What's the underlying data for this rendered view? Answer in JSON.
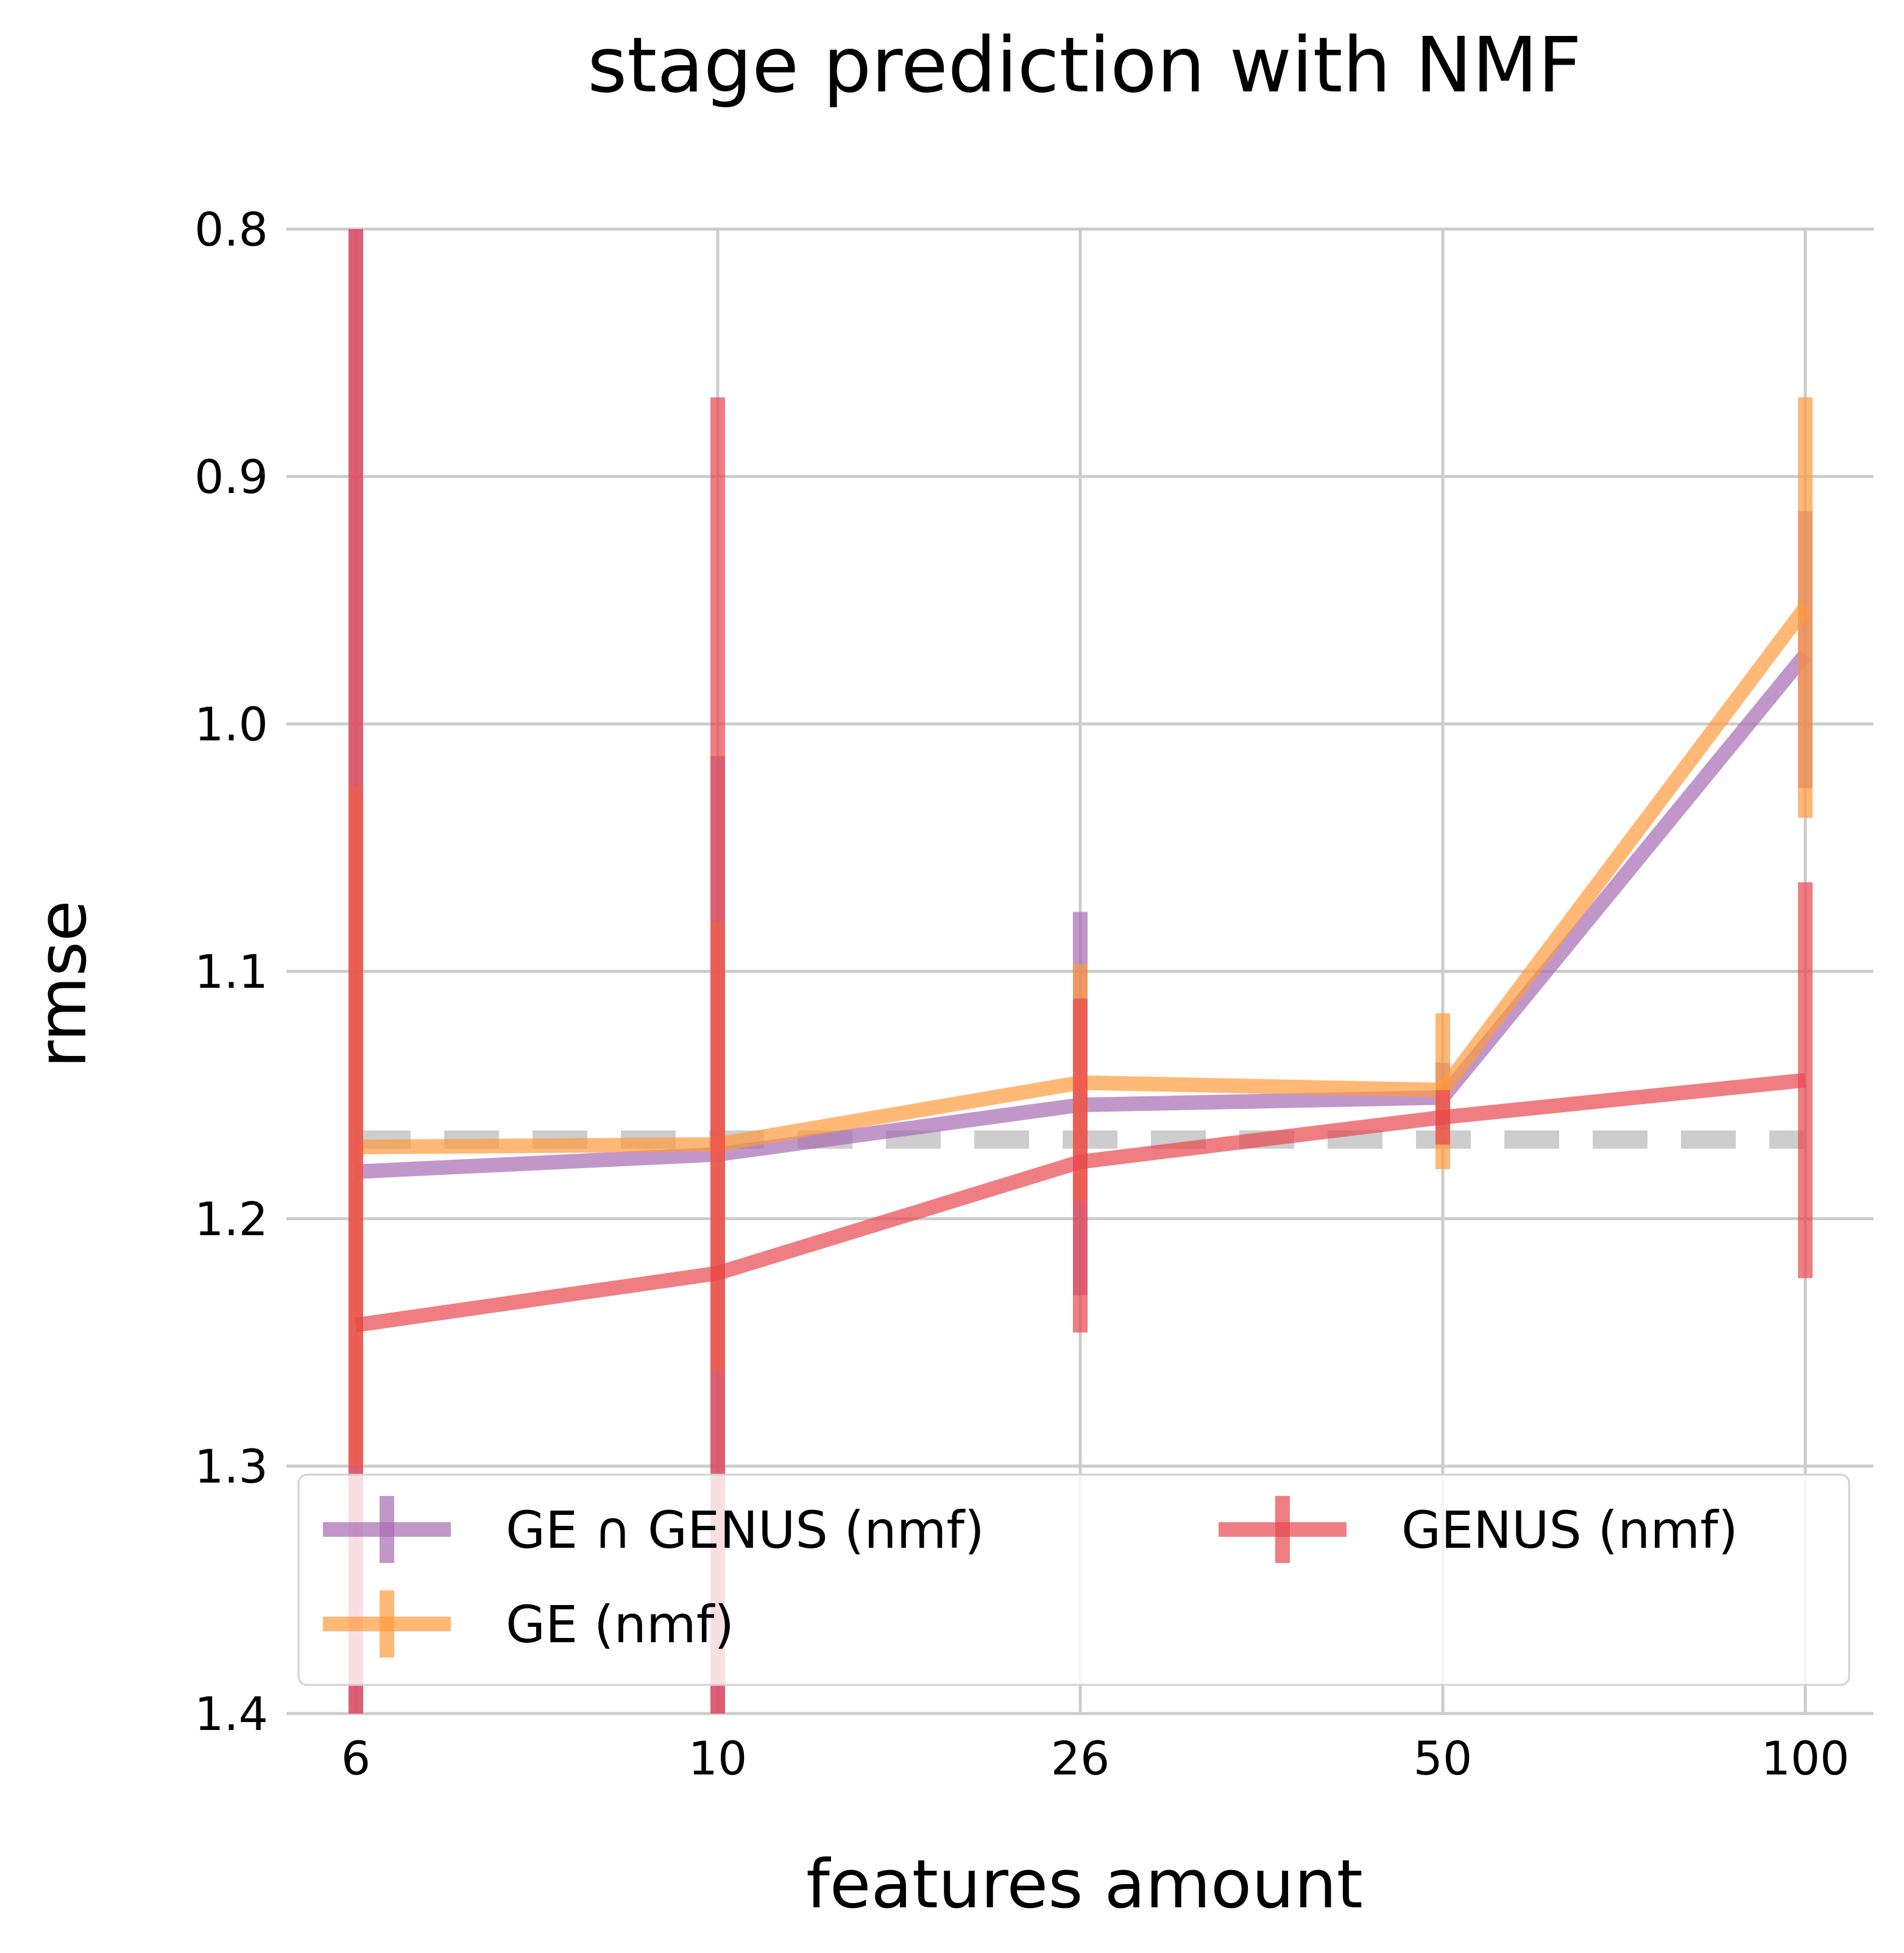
{
  "chart_data": {
    "type": "line",
    "title": "stage prediction with NMF",
    "xlabel": "features amount",
    "ylabel": "rmse",
    "x": [
      "6",
      "10",
      "26",
      "50",
      "100"
    ],
    "yticks": [
      "0.8",
      "0.9",
      "1.0",
      "1.1",
      "1.2",
      "1.3",
      "1.4"
    ],
    "ylim": [
      1.4,
      0.8
    ],
    "y_inverted": true,
    "grid": true,
    "legend_position": "lower center",
    "baseline": {
      "value": 1.168,
      "style": "dashed",
      "color": "#c8c8c8"
    },
    "series": [
      {
        "name": "GE ∩ GENUS (nmf)",
        "color": "#a66bb3",
        "values": [
          1.181,
          1.174,
          1.154,
          1.151,
          0.972
        ],
        "error_low": [
          0.8,
          1.013,
          1.076,
          1.137,
          0.914
        ],
        "error_high": [
          1.4,
          1.4,
          1.231,
          1.164,
          1.026
        ]
      },
      {
        "name": "GE (nmf)",
        "color": "#ff9a3c",
        "values": [
          1.171,
          1.17,
          1.145,
          1.148,
          0.953
        ],
        "error_low": [
          1.025,
          1.08,
          1.097,
          1.117,
          0.868
        ],
        "error_high": [
          1.3,
          1.262,
          1.193,
          1.18,
          1.038
        ]
      },
      {
        "name": "GENUS (nmf)",
        "color": "#e8474f",
        "values": [
          1.243,
          1.222,
          1.177,
          1.159,
          1.144
        ],
        "error_low": [
          0.8,
          0.868,
          1.111,
          1.148,
          1.064
        ],
        "error_high": [
          1.4,
          1.4,
          1.246,
          1.17,
          1.224
        ]
      }
    ],
    "legend_order": [
      0,
      2,
      1
    ]
  }
}
